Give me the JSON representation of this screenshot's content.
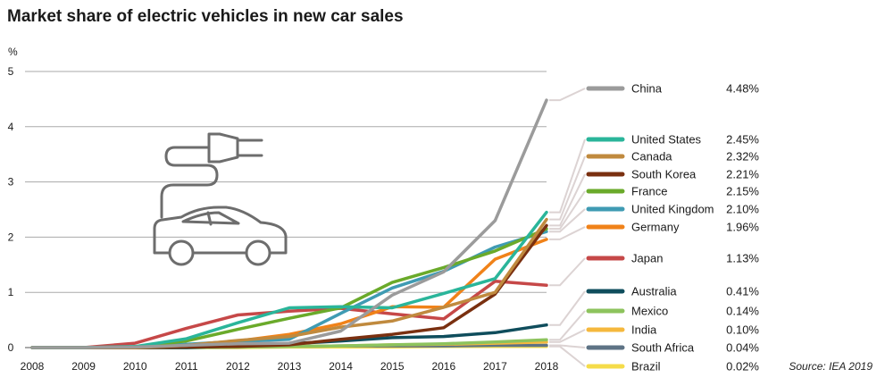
{
  "chart_data": {
    "type": "line",
    "title": "Market share of electric vehicles in new car sales",
    "ylabel": "%",
    "xlabel": "",
    "x": [
      2008,
      2009,
      2010,
      2011,
      2012,
      2013,
      2014,
      2015,
      2016,
      2017,
      2018
    ],
    "x_tick_labels": [
      "2008",
      "2009",
      "2010",
      "2011",
      "2012",
      "2013",
      "2014",
      "2015",
      "2016",
      "2017",
      "2018"
    ],
    "y_ticks": [
      0,
      1,
      2,
      3,
      4,
      5
    ],
    "ylim": [
      0,
      5
    ],
    "grid": "horizontal",
    "legend_placement": "right",
    "source": "Source: IEA 2019",
    "series": [
      {
        "name": "China",
        "value_label": "4.48%",
        "color": "#9b9b9b",
        "values": [
          0,
          0,
          0.01,
          0.04,
          0.07,
          0.08,
          0.3,
          0.95,
          1.37,
          2.3,
          4.48
        ]
      },
      {
        "name": "United States",
        "value_label": "2.45%",
        "color": "#2ab59a",
        "values": [
          0,
          0,
          0.02,
          0.16,
          0.45,
          0.72,
          0.74,
          0.72,
          0.98,
          1.25,
          2.45
        ]
      },
      {
        "name": "Canada",
        "value_label": "2.32%",
        "color": "#c08a3e",
        "values": [
          0,
          0,
          0,
          0.04,
          0.13,
          0.2,
          0.37,
          0.48,
          0.73,
          1.0,
          2.32
        ]
      },
      {
        "name": "South Korea",
        "value_label": "2.21%",
        "color": "#7a3010",
        "values": [
          0,
          0,
          0,
          0.01,
          0.02,
          0.05,
          0.15,
          0.24,
          0.36,
          0.97,
          2.21
        ]
      },
      {
        "name": "France",
        "value_label": "2.15%",
        "color": "#6aaa2a",
        "values": [
          0,
          0,
          0.01,
          0.12,
          0.33,
          0.53,
          0.72,
          1.18,
          1.45,
          1.75,
          2.15
        ]
      },
      {
        "name": "United Kingdom",
        "value_label": "2.10%",
        "color": "#3f9bb3",
        "values": [
          0,
          0,
          0.01,
          0.06,
          0.11,
          0.15,
          0.62,
          1.08,
          1.38,
          1.82,
          2.1
        ]
      },
      {
        "name": "Germany",
        "value_label": "1.96%",
        "color": "#f08219",
        "values": [
          0,
          0,
          0.01,
          0.05,
          0.12,
          0.24,
          0.43,
          0.74,
          0.73,
          1.6,
          1.96
        ]
      },
      {
        "name": "Japan",
        "value_label": "1.13%",
        "color": "#c64848",
        "values": [
          0,
          0,
          0.08,
          0.35,
          0.59,
          0.66,
          0.71,
          0.61,
          0.52,
          1.2,
          1.13
        ]
      },
      {
        "name": "Australia",
        "value_label": "0.41%",
        "color": "#0f4d5c",
        "values": [
          0,
          0,
          0,
          0,
          0.03,
          0.07,
          0.12,
          0.18,
          0.2,
          0.27,
          0.41
        ]
      },
      {
        "name": "Mexico",
        "value_label": "0.14%",
        "color": "#8dc35d",
        "values": [
          0,
          0,
          0,
          0,
          0.01,
          0.02,
          0.03,
          0.05,
          0.07,
          0.1,
          0.14
        ]
      },
      {
        "name": "India",
        "value_label": "0.10%",
        "color": "#f5b83d",
        "values": [
          0,
          0,
          0,
          0.01,
          0.01,
          0.02,
          0.03,
          0.05,
          0.06,
          0.08,
          0.1
        ]
      },
      {
        "name": "South Africa",
        "value_label": "0.04%",
        "color": "#5e7385",
        "values": [
          0,
          0,
          0,
          0,
          0.01,
          0.02,
          0.03,
          0.03,
          0.03,
          0.04,
          0.04
        ]
      },
      {
        "name": "Brazil",
        "value_label": "0.02%",
        "color": "#f5dc4a",
        "values": [
          0,
          0,
          0,
          0,
          0,
          0.01,
          0.01,
          0.01,
          0.02,
          0.02,
          0.02
        ]
      }
    ],
    "illustration": "car-with-plug-icon",
    "colors": {
      "grid": "#aaaaaa",
      "axis": "#555555",
      "leader": "#dcd3d3",
      "icon": "#6d6d6d"
    }
  }
}
